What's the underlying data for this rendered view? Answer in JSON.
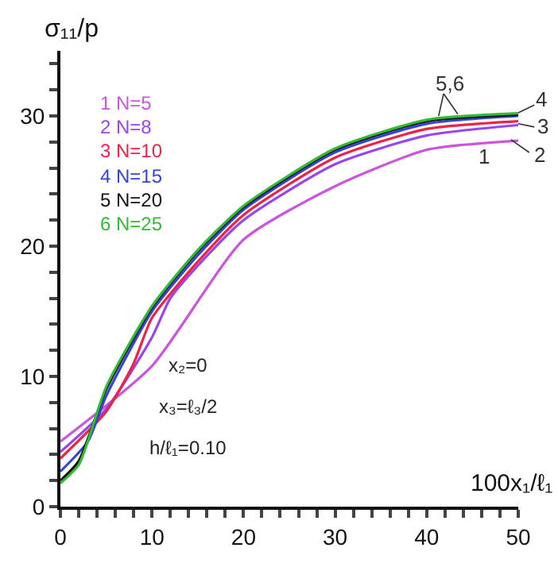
{
  "chart_data": {
    "type": "line",
    "ylabel": "σ₁₁/p",
    "xlabel": "100x₁/ℓ₁",
    "xlim": [
      0,
      50
    ],
    "ylim": [
      0,
      35
    ],
    "xticks": [
      0,
      {
        "value": 2,
        "label": null
      },
      {
        "value": 4,
        "label": null
      },
      {
        "value": 6,
        "label": null
      },
      {
        "value": 8,
        "label": null
      },
      10,
      {
        "value": 12,
        "label": null
      },
      {
        "value": 14,
        "label": null
      },
      {
        "value": 16,
        "label": null
      },
      {
        "value": 18,
        "label": null
      },
      20,
      {
        "value": 22,
        "label": null
      },
      {
        "value": 24,
        "label": null
      },
      {
        "value": 26,
        "label": null
      },
      {
        "value": 28,
        "label": null
      },
      30,
      {
        "value": 32,
        "label": null
      },
      {
        "value": 34,
        "label": null
      },
      {
        "value": 36,
        "label": null
      },
      {
        "value": 38,
        "label": null
      },
      40,
      {
        "value": 42,
        "label": null
      },
      {
        "value": 44,
        "label": null
      },
      {
        "value": 46,
        "label": null
      },
      {
        "value": 48,
        "label": null
      },
      50
    ],
    "yticks": [
      0,
      {
        "value": 2,
        "label": null
      },
      {
        "value": 4,
        "label": null
      },
      {
        "value": 6,
        "label": null
      },
      {
        "value": 8,
        "label": null
      },
      10,
      {
        "value": 12,
        "label": null
      },
      {
        "value": 14,
        "label": null
      },
      {
        "value": 16,
        "label": null
      },
      {
        "value": 18,
        "label": null
      },
      20,
      {
        "value": 22,
        "label": null
      },
      {
        "value": 24,
        "label": null
      },
      {
        "value": 26,
        "label": null
      },
      {
        "value": 28,
        "label": null
      },
      30,
      {
        "value": 32,
        "label": null
      },
      {
        "value": 34,
        "label": null
      }
    ],
    "grid": false,
    "marker": "none",
    "line_style": "solid",
    "series": [
      {
        "name": "1 N=5",
        "color": "#cc55dd",
        "x": [
          0,
          10,
          20,
          30,
          40,
          50
        ],
        "values": [
          5.0,
          10.8,
          20.5,
          24.6,
          27.4,
          28.1
        ]
      },
      {
        "name": "2 N=8",
        "color": "#9944ee",
        "x": [
          0,
          5,
          10,
          12,
          15,
          20,
          30,
          40,
          50
        ],
        "values": [
          4.2,
          7.5,
          13,
          16,
          18.5,
          22,
          26.3,
          28.5,
          29.3
        ]
      },
      {
        "name": "3 N=10",
        "color": "#ee2244",
        "x": [
          0,
          5,
          8,
          10,
          15,
          20,
          30,
          40,
          50
        ],
        "values": [
          3.7,
          7.3,
          11,
          14.5,
          18.8,
          22.4,
          26.8,
          29,
          29.6
        ]
      },
      {
        "name": "4 N=15",
        "color": "#3344dd",
        "x": [
          0,
          3,
          5,
          10,
          15,
          20,
          30,
          40,
          50
        ],
        "values": [
          2.7,
          5,
          8.5,
          15,
          19.3,
          22.8,
          27.2,
          29.4,
          30.0
        ]
      },
      {
        "name": "5 N=20",
        "color": "#111111",
        "x": [
          0,
          2,
          5,
          10,
          15,
          20,
          30,
          40,
          50
        ],
        "values": [
          2.0,
          3.5,
          9,
          15.3,
          19.6,
          23,
          27.4,
          29.6,
          30.1
        ]
      },
      {
        "name": "6 N=25",
        "color": "#33bb33",
        "x": [
          0,
          2,
          5,
          10,
          15,
          20,
          30,
          40,
          50
        ],
        "values": [
          1.8,
          3.2,
          9.2,
          15.4,
          19.7,
          23.1,
          27.5,
          29.7,
          30.2
        ]
      }
    ],
    "annotations": [
      "x₂=0",
      "x₃=ℓ₃/2",
      "h/ℓ₁=0.10",
      "1",
      "2",
      "3",
      "4",
      "5,6"
    ]
  }
}
